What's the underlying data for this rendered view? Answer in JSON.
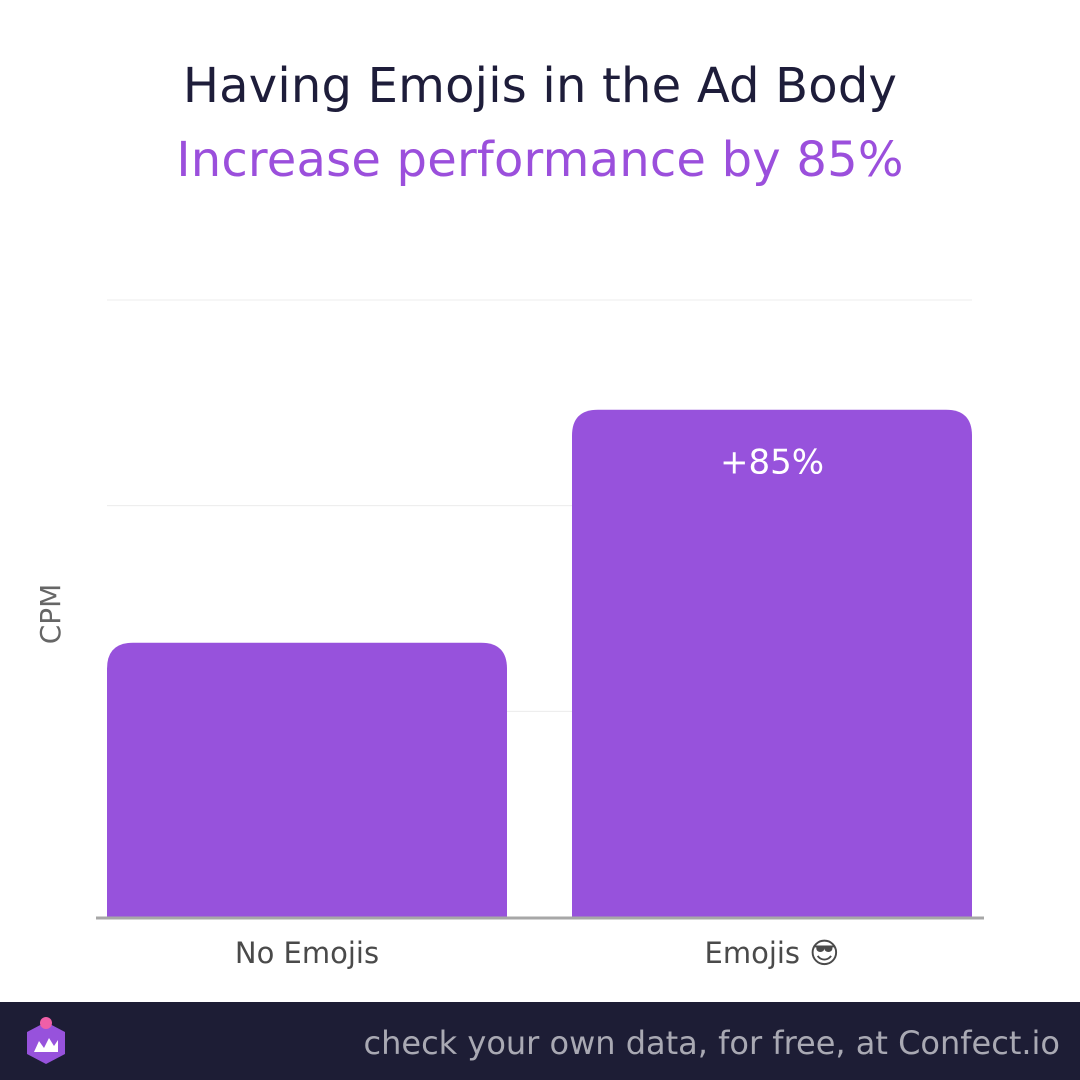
{
  "header": {
    "title": "Having Emojis in the Ad Body",
    "subtitle": "Increase performance by 85%"
  },
  "chart_data": {
    "type": "bar",
    "categories": [
      "No Emojis",
      "Emojis 😎"
    ],
    "values": [
      100,
      185
    ],
    "data_labels": [
      "",
      "+85%"
    ],
    "ylabel": "CPM",
    "ylim": [
      0,
      225
    ],
    "grid": true,
    "legend": "none"
  },
  "footer": {
    "text": "check your own data, for free, at Confect.io",
    "logo_icon": "confect-logo-icon"
  },
  "colors": {
    "bar": "#9752dc",
    "title": "#1e1d3a",
    "accent": "#9b4fdc",
    "footer_bg": "#1d1d35",
    "footer_text": "#a9a9b3",
    "axis": "#a7a7a7",
    "grid": "#ececec",
    "tick_label": "#4a4a4a"
  }
}
